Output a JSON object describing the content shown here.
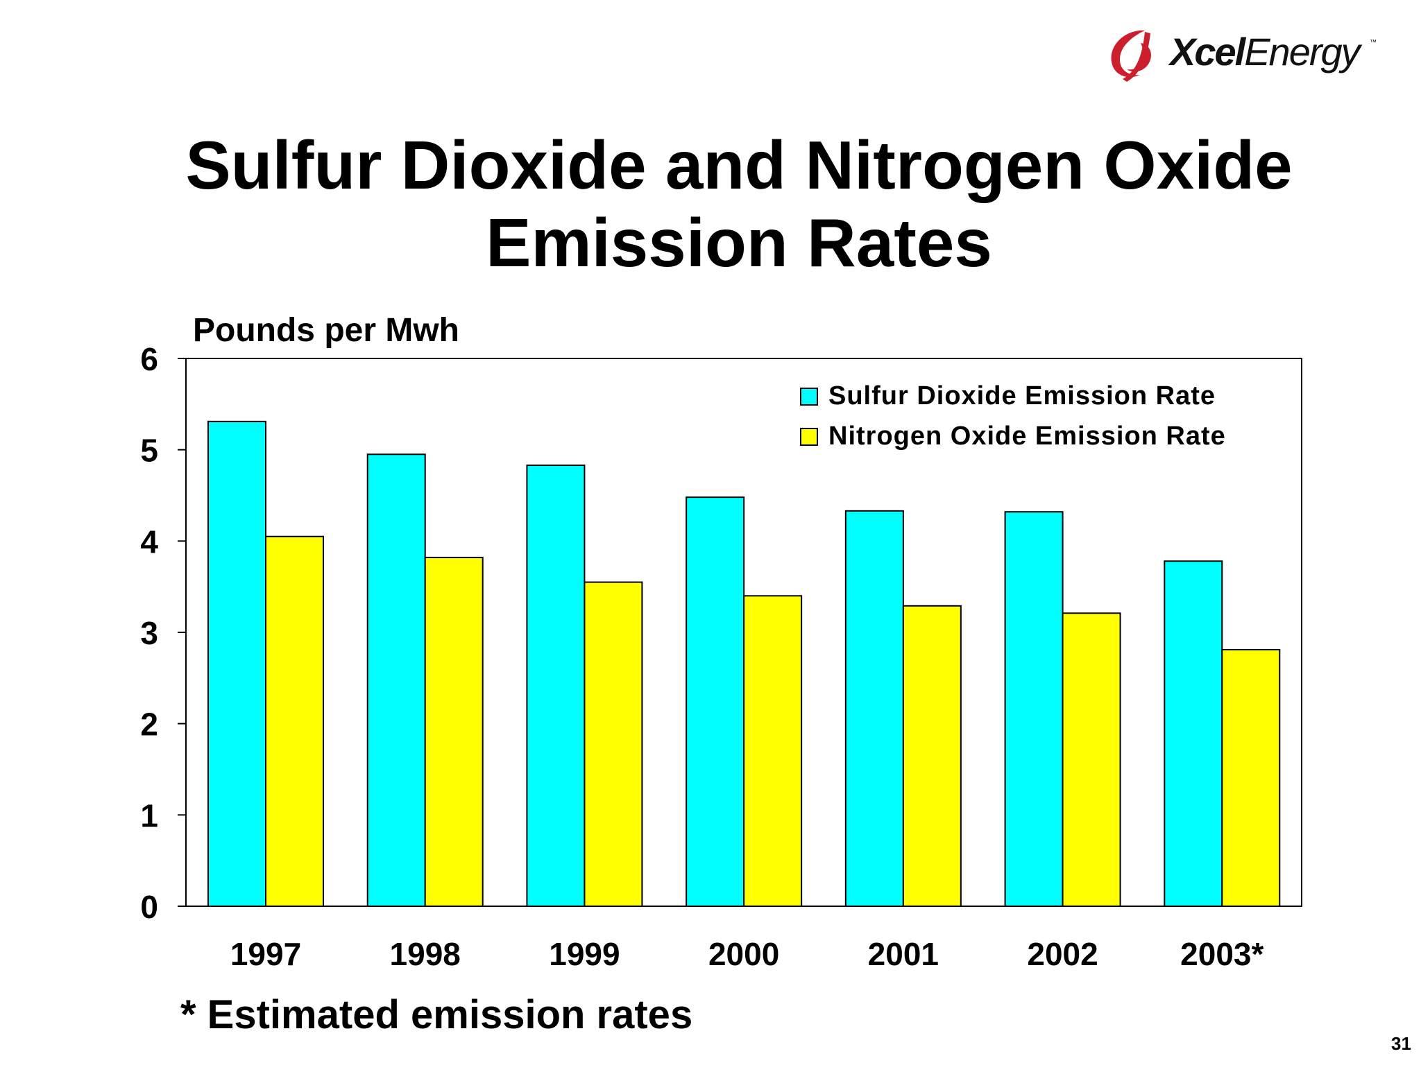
{
  "logo": {
    "brand_bold": "Xcel",
    "brand_regular": "Energy",
    "trademark": "™",
    "brand_color": "#cc1f2d"
  },
  "title": {
    "line1": "Sulfur Dioxide and Nitrogen Oxide",
    "line2": "Emission Rates"
  },
  "footnote": "* Estimated emission rates",
  "page_number": "31",
  "chart_data": {
    "type": "bar",
    "title": "Sulfur Dioxide and Nitrogen Oxide Emission Rates",
    "xlabel": "",
    "ylabel": "Pounds per Mwh",
    "ylim": [
      0,
      6
    ],
    "yticks": [
      0,
      1,
      2,
      3,
      4,
      5,
      6
    ],
    "grid": false,
    "legend_position": "top-right",
    "categories": [
      "1997",
      "1998",
      "1999",
      "2000",
      "2001",
      "2002",
      "2003*"
    ],
    "series": [
      {
        "name": "Sulfur Dioxide Emission Rate",
        "color": "#00ffff",
        "values": [
          5.31,
          4.95,
          4.83,
          4.48,
          4.33,
          4.32,
          3.78
        ]
      },
      {
        "name": "Nitrogen Oxide Emission Rate",
        "color": "#ffff00",
        "values": [
          4.05,
          3.82,
          3.55,
          3.4,
          3.29,
          3.21,
          2.81
        ]
      }
    ]
  }
}
